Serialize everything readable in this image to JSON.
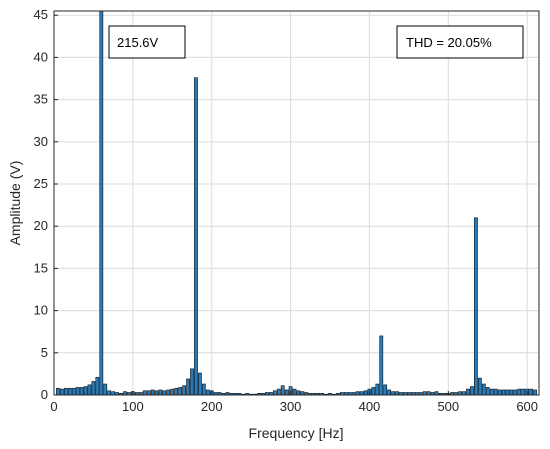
{
  "chart_data": {
    "type": "bar",
    "xlabel": "Frequency [Hz]",
    "ylabel": "Amplitude (V)",
    "xlim": [
      0,
      615
    ],
    "ylim": [
      0,
      45.5
    ],
    "x_ticks": [
      0,
      100,
      200,
      300,
      400,
      500,
      600
    ],
    "y_ticks": [
      0,
      5,
      10,
      15,
      20,
      25,
      30,
      35,
      40,
      45
    ],
    "grid": true,
    "bar_width": 4,
    "colors": {
      "bar_fill": "#2b7bb9",
      "bar_edge": "#111111",
      "grid": "#dcdcdc",
      "axis": "#262626"
    },
    "annotations": [
      {
        "id": "fundamental",
        "text": "215.6V"
      },
      {
        "id": "thd",
        "text": "THD = 20.05%"
      }
    ],
    "series": [
      {
        "x": [
          5,
          10,
          15,
          20,
          25,
          30,
          35,
          40,
          45,
          50,
          55,
          60,
          65,
          70,
          75,
          80,
          85,
          90,
          95,
          100,
          105,
          110,
          115,
          120,
          125,
          130,
          135,
          140,
          145,
          150,
          155,
          160,
          165,
          170,
          175,
          180,
          185,
          190,
          195,
          200,
          205,
          210,
          215,
          220,
          225,
          230,
          235,
          240,
          245,
          250,
          255,
          260,
          265,
          270,
          275,
          280,
          285,
          290,
          295,
          300,
          305,
          310,
          315,
          320,
          325,
          330,
          335,
          340,
          345,
          350,
          355,
          360,
          365,
          370,
          375,
          380,
          385,
          390,
          395,
          400,
          405,
          410,
          415,
          420,
          425,
          430,
          435,
          440,
          445,
          450,
          455,
          460,
          465,
          470,
          475,
          480,
          485,
          490,
          495,
          500,
          505,
          510,
          515,
          520,
          525,
          530,
          535,
          540,
          545,
          550,
          555,
          560,
          565,
          570,
          575,
          580,
          585,
          590,
          595,
          600,
          605,
          610
        ],
        "values": [
          0.8,
          0.7,
          0.8,
          0.8,
          0.8,
          0.9,
          0.9,
          1.0,
          1.2,
          1.6,
          2.1,
          45.5,
          1.3,
          0.5,
          0.4,
          0.3,
          0.2,
          0.4,
          0.3,
          0.4,
          0.3,
          0.3,
          0.5,
          0.5,
          0.6,
          0.5,
          0.6,
          0.5,
          0.6,
          0.7,
          0.8,
          0.9,
          1.1,
          1.9,
          3.1,
          37.6,
          2.6,
          1.3,
          0.6,
          0.5,
          0.3,
          0.3,
          0.2,
          0.3,
          0.2,
          0.2,
          0.2,
          0.1,
          0.2,
          0.1,
          0.1,
          0.2,
          0.2,
          0.3,
          0.3,
          0.5,
          0.7,
          1.1,
          0.6,
          1.0,
          0.7,
          0.5,
          0.4,
          0.3,
          0.2,
          0.2,
          0.2,
          0.2,
          0.1,
          0.2,
          0.1,
          0.2,
          0.3,
          0.3,
          0.3,
          0.3,
          0.4,
          0.4,
          0.5,
          0.7,
          0.9,
          1.3,
          7.0,
          1.2,
          0.6,
          0.4,
          0.4,
          0.3,
          0.3,
          0.3,
          0.3,
          0.3,
          0.3,
          0.4,
          0.4,
          0.3,
          0.4,
          0.2,
          0.2,
          0.2,
          0.3,
          0.3,
          0.4,
          0.4,
          0.7,
          1.0,
          21.0,
          2.0,
          1.3,
          0.9,
          0.7,
          0.7,
          0.6,
          0.6,
          0.6,
          0.6,
          0.6,
          0.7,
          0.7,
          0.7,
          0.7,
          0.6
        ]
      }
    ]
  }
}
